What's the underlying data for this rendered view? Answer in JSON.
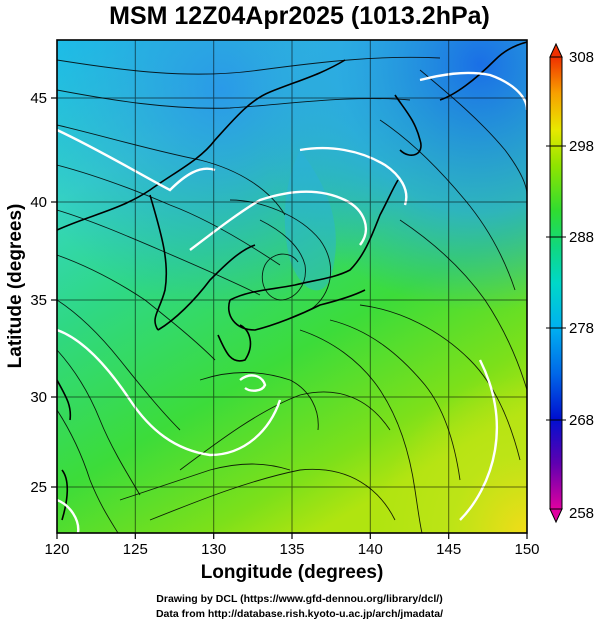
{
  "title": "MSM 12Z04Apr2025 (1013.2hPa)",
  "map": {
    "xlabel": "Longitude (degrees)",
    "ylabel": "Latitude  (degrees)",
    "lon_range": [
      120,
      150
    ],
    "lat_range": [
      22.4,
      47.6
    ],
    "lon_ticks": [
      "120",
      "125",
      "130",
      "135",
      "140",
      "145",
      "150"
    ],
    "lat_ticks": [
      "25",
      "30",
      "35",
      "40",
      "45"
    ],
    "field": "temperature (K) with streamlines and white contours",
    "grid": true
  },
  "colorbar": {
    "ticks": [
      "308",
      "298",
      "288",
      "278",
      "268",
      "258"
    ],
    "min": 258,
    "max": 308,
    "colors": [
      "#e000a0",
      "#6000b0",
      "#0010d0",
      "#0090f0",
      "#00d8c8",
      "#10d870",
      "#50e010",
      "#b8e800",
      "#f0e800",
      "#f8a000",
      "#f04000"
    ]
  },
  "credit": {
    "line1": "Drawing by DCL (https://www.gfd-dennou.org/library/dcl/)",
    "line2": "Data from http://database.rish.kyoto-u.ac.jp/arch/jmadata/"
  }
}
